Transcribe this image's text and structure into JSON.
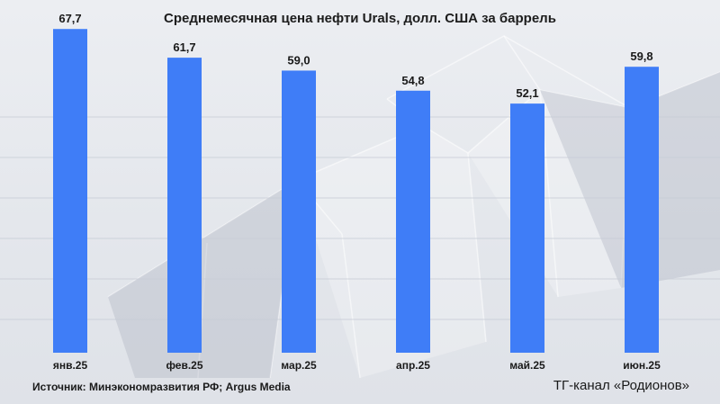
{
  "chart_data": {
    "type": "bar",
    "title": "Среднемесячная цена нефти Urals, долл. США за баррель",
    "categories": [
      "янв.25",
      "фев.25",
      "мар.25",
      "апр.25",
      "май.25",
      "июн.25"
    ],
    "values": [
      67.7,
      61.7,
      59.0,
      54.8,
      52.1,
      59.8
    ],
    "value_labels": [
      "67,7",
      "61,7",
      "59,0",
      "54,8",
      "52,1",
      "59,8"
    ],
    "xlabel": "",
    "ylabel": "",
    "ylim": [
      0,
      70
    ],
    "grid": true,
    "bar_color": "#3f7df7"
  },
  "footer": {
    "source": "Источник: Минэкономразвития РФ; Argus Media",
    "channel": "ТГ-канал «Родионов»"
  }
}
